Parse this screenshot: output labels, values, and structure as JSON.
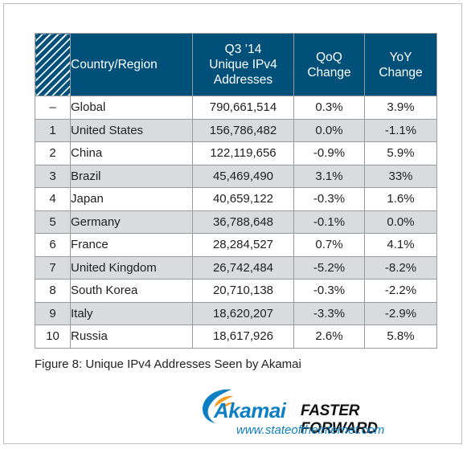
{
  "table": {
    "headers": {
      "country": "Country/Region",
      "addresses": [
        "Q3 ’14",
        "Unique IPv4",
        "Addresses"
      ],
      "qoq": [
        "QoQ",
        "Change"
      ],
      "yoy": [
        "YoY",
        "Change"
      ]
    },
    "rows": [
      {
        "rank": "–",
        "country": "Global",
        "addresses": "790,661,514",
        "qoq": "0.3%",
        "yoy": "3.9%"
      },
      {
        "rank": "1",
        "country": "United States",
        "addresses": "156,786,482",
        "qoq": "0.0%",
        "yoy": "-1.1%"
      },
      {
        "rank": "2",
        "country": "China",
        "addresses": "122,119,656",
        "qoq": "-0.9%",
        "yoy": "5.9%"
      },
      {
        "rank": "3",
        "country": "Brazil",
        "addresses": "45,469,490",
        "qoq": "3.1%",
        "yoy": "33%"
      },
      {
        "rank": "4",
        "country": "Japan",
        "addresses": "40,659,122",
        "qoq": "-0.3%",
        "yoy": "1.6%"
      },
      {
        "rank": "5",
        "country": "Germany",
        "addresses": "36,788,648",
        "qoq": "-0.1%",
        "yoy": "0.0%"
      },
      {
        "rank": "6",
        "country": "France",
        "addresses": "28,284,527",
        "qoq": "0.7%",
        "yoy": "4.1%"
      },
      {
        "rank": "7",
        "country": "United Kingdom",
        "addresses": "26,742,484",
        "qoq": "-5.2%",
        "yoy": "-8.2%"
      },
      {
        "rank": "8",
        "country": "South Korea",
        "addresses": "20,710,138",
        "qoq": "-0.3%",
        "yoy": "-2.2%"
      },
      {
        "rank": "9",
        "country": "Italy",
        "addresses": "18,620,207",
        "qoq": "-3.3%",
        "yoy": "-2.9%"
      },
      {
        "rank": "10",
        "country": "Russia",
        "addresses": "18,617,926",
        "qoq": "2.6%",
        "yoy": "5.8%"
      }
    ]
  },
  "caption": "Figure 8: Unique IPv4 Addresses Seen by Akamai",
  "brand": {
    "name": "Akamai",
    "tagline": "FASTER FORWARD",
    "url": "www.stateoftheinternet.com"
  },
  "colors": {
    "header_bg": "#00507a",
    "row_alt_bg": "#d9dcdf",
    "brand_blue": "#0d7fc2",
    "brand_orange": "#f39a1f"
  },
  "icons": {
    "logo": "akamai-wave-logo-icon"
  }
}
